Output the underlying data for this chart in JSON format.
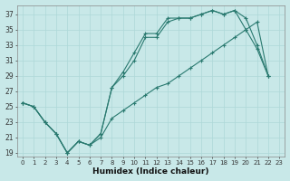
{
  "xlabel": "Humidex (Indice chaleur)",
  "bg_color": "#c8e8e8",
  "grid_color": "#add8d8",
  "line_color": "#2a7a70",
  "xlim": [
    -0.5,
    23.5
  ],
  "ylim": [
    18.5,
    38.2
  ],
  "yticks": [
    19,
    21,
    23,
    25,
    27,
    29,
    31,
    33,
    35,
    37
  ],
  "xticks": [
    0,
    1,
    2,
    3,
    4,
    5,
    6,
    7,
    8,
    9,
    10,
    11,
    12,
    13,
    14,
    15,
    16,
    17,
    18,
    19,
    20,
    21,
    22,
    23
  ],
  "series1_y": [
    25.5,
    25.0,
    23.0,
    21.5,
    19.0,
    20.5,
    20.0,
    21.5,
    27.5,
    29.0,
    31.0,
    34.0,
    34.0,
    36.0,
    36.5,
    36.5,
    37.0,
    37.5,
    37.0,
    37.5,
    35.0,
    32.5,
    29.0
  ],
  "series2_y": [
    25.5,
    25.0,
    23.0,
    21.5,
    19.0,
    20.5,
    20.0,
    21.5,
    27.5,
    29.5,
    32.0,
    34.5,
    34.5,
    36.5,
    36.5,
    36.5,
    37.0,
    37.5,
    37.0,
    37.5,
    36.5,
    33.0,
    29.0
  ],
  "series3_y": [
    25.5,
    25.0,
    23.0,
    21.5,
    19.0,
    20.5,
    20.0,
    21.0,
    23.5,
    24.5,
    25.5,
    26.5,
    27.5,
    28.0,
    29.0,
    30.0,
    31.0,
    32.0,
    33.0,
    34.0,
    35.0,
    36.0,
    29.0
  ]
}
